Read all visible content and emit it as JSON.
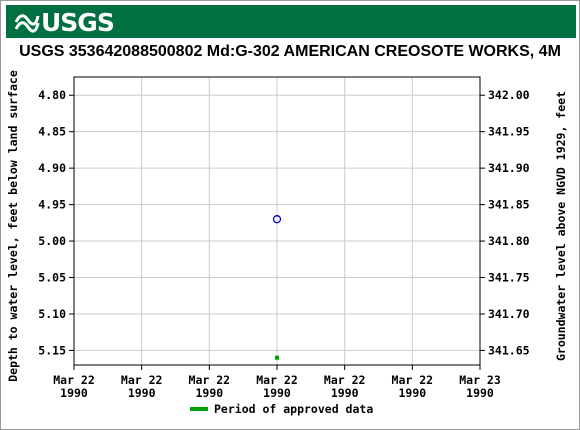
{
  "header": {
    "logo_text": "USGS",
    "logo_icon": "usgs-wave-icon",
    "banner_color": "#006f41"
  },
  "chart_data": {
    "type": "scatter",
    "title": "USGS 353642088500802 Md:G-302 AMERICAN CREOSOTE WORKS, 4M",
    "ylabel_left": "Depth to water level, feet below land surface",
    "ylabel_right": "Groundwater level above NGVD 1929, feet",
    "y_left": {
      "ticks": [
        "4.80",
        "4.85",
        "4.90",
        "4.95",
        "5.00",
        "5.05",
        "5.10",
        "5.15"
      ],
      "range": [
        4.775,
        5.17
      ],
      "inverted": true
    },
    "y_right": {
      "ticks": [
        "342.00",
        "341.95",
        "341.90",
        "341.85",
        "341.80",
        "341.75",
        "341.70",
        "341.65"
      ]
    },
    "x_ticks": [
      {
        "line1": "Mar 22",
        "line2": "1990"
      },
      {
        "line1": "Mar 22",
        "line2": "1990"
      },
      {
        "line1": "Mar 22",
        "line2": "1990"
      },
      {
        "line1": "Mar 22",
        "line2": "1990"
      },
      {
        "line1": "Mar 22",
        "line2": "1990"
      },
      {
        "line1": "Mar 22",
        "line2": "1990"
      },
      {
        "line1": "Mar 23",
        "line2": "1990"
      }
    ],
    "x_range_hours": [
      0,
      24
    ],
    "series": [
      {
        "kind": "measurement",
        "marker": "circle",
        "color": "#0000cc",
        "points": [
          {
            "x_hour": 12,
            "y": 4.97
          }
        ]
      },
      {
        "kind": "approved-period",
        "marker": "square",
        "color": "#00a000",
        "points": [
          {
            "x_hour": 12,
            "y": 5.16
          }
        ]
      }
    ],
    "grid": true,
    "legend": {
      "position": "bottom",
      "entries": [
        {
          "label": "Period of approved data",
          "color": "#00a000"
        }
      ]
    }
  }
}
